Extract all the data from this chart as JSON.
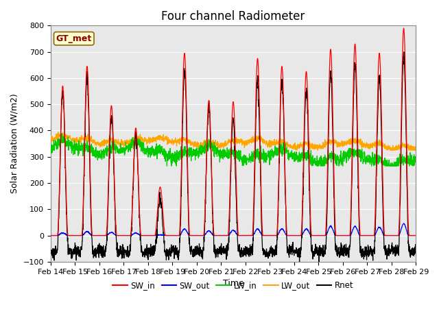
{
  "title": "Four channel Radiometer",
  "xlabel": "Time",
  "ylabel": "Solar Radiation (W/m2)",
  "ylim": [
    -100,
    800
  ],
  "x_tick_labels": [
    "Feb 14",
    "Feb 15",
    "Feb 16",
    "Feb 17",
    "Feb 18",
    "Feb 19",
    "Feb 20",
    "Feb 21",
    "Feb 22",
    "Feb 23",
    "Feb 24",
    "Feb 25",
    "Feb 26",
    "Feb 27",
    "Feb 28",
    "Feb 29"
  ],
  "annotation_text": "GT_met",
  "annotation_color": "#8B0000",
  "annotation_bg": "#FFFFCC",
  "annotation_edge": "#8B6914",
  "colors": {
    "SW_in": "#FF0000",
    "SW_out": "#0000FF",
    "LW_in": "#00CC00",
    "LW_out": "#FFA500",
    "Rnet": "#000000"
  },
  "bg_color": "#E8E8E8",
  "grid_color": "#FFFFFF",
  "title_fontsize": 12,
  "label_fontsize": 9,
  "tick_fontsize": 8,
  "n_days": 15,
  "sw_in_peaks": [
    570,
    645,
    495,
    410,
    185,
    695,
    515,
    510,
    675,
    645,
    625,
    710,
    730,
    695,
    790
  ],
  "sw_out_peaks": [
    10,
    15,
    12,
    10,
    3,
    25,
    18,
    20,
    25,
    25,
    25,
    35,
    35,
    32,
    45
  ],
  "lw_in_base": 330,
  "lw_out_base": 360,
  "rnet_night": -60
}
